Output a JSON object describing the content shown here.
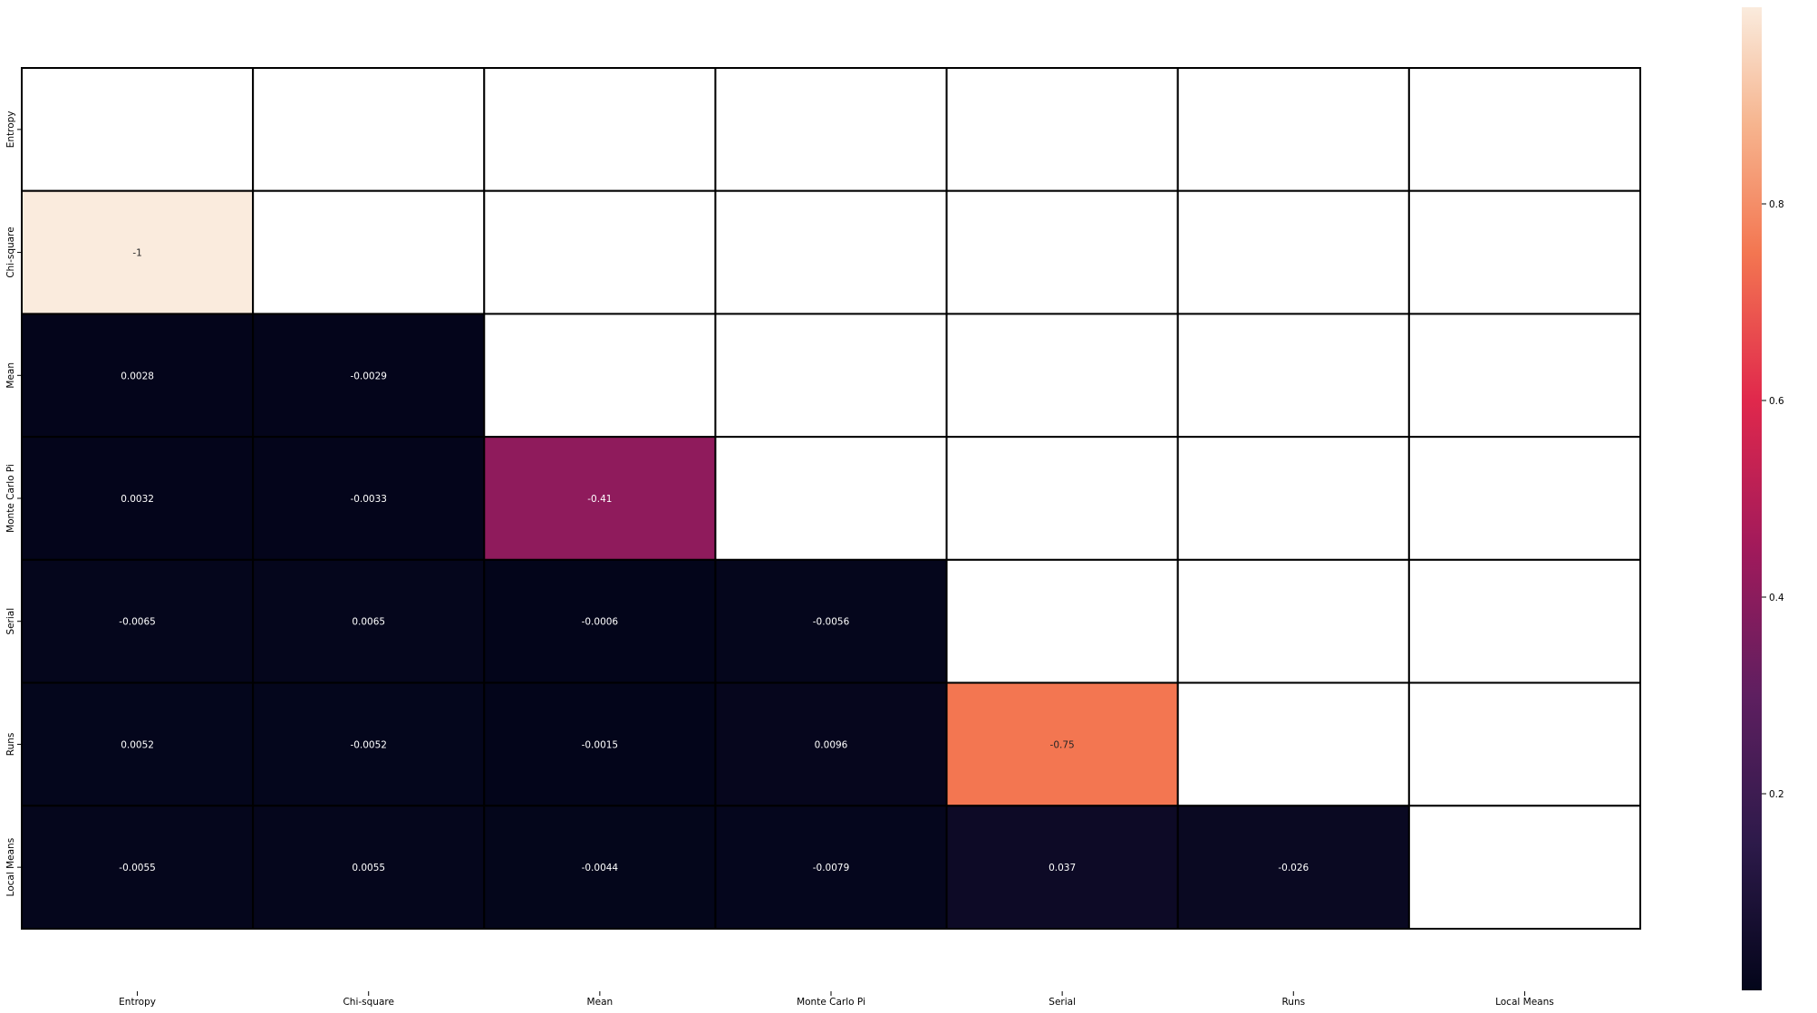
{
  "chart_data": {
    "type": "heatmap",
    "title": "",
    "xlabel": "",
    "ylabel": "",
    "labels": [
      "Entropy",
      "Chi-square",
      "Mean",
      "Monte Carlo Pi",
      "Serial",
      "Runs",
      "Local Means"
    ],
    "matrix": [
      [
        null,
        null,
        null,
        null,
        null,
        null,
        null
      ],
      [
        -1,
        null,
        null,
        null,
        null,
        null,
        null
      ],
      [
        0.0028,
        -0.0029,
        null,
        null,
        null,
        null,
        null
      ],
      [
        0.0032,
        -0.0033,
        -0.41,
        null,
        null,
        null,
        null
      ],
      [
        -0.0065,
        0.0065,
        -0.0006,
        -0.0056,
        null,
        null,
        null
      ],
      [
        0.0052,
        -0.0052,
        -0.0015,
        0.0096,
        -0.75,
        null,
        null
      ],
      [
        -0.0055,
        0.0055,
        -0.0044,
        -0.0079,
        0.037,
        -0.026,
        null
      ]
    ],
    "annotations": [
      [
        null,
        null,
        null,
        null,
        null,
        null,
        null
      ],
      [
        "-1",
        null,
        null,
        null,
        null,
        null,
        null
      ],
      [
        "0.0028",
        "-0.0029",
        null,
        null,
        null,
        null,
        null
      ],
      [
        "0.0032",
        "-0.0033",
        "-0.41",
        null,
        null,
        null,
        null
      ],
      [
        "-0.0065",
        "0.0065",
        "-0.0006",
        "-0.0056",
        null,
        null,
        null
      ],
      [
        "0.0052",
        "-0.0052",
        "-0.0015",
        "0.0096",
        "-0.75",
        null,
        null
      ],
      [
        "-0.0055",
        "0.0055",
        "-0.0044",
        "-0.0079",
        "0.037",
        "-0.026",
        null
      ]
    ],
    "mask": "upper-triangle-including-diagonal",
    "colormap": "rocket",
    "color_value": "absolute",
    "colorbar": {
      "range": [
        0,
        1
      ],
      "ticks": [
        0.2,
        0.4,
        0.6,
        0.8
      ]
    },
    "grid_color": "#000000",
    "legend": "none"
  }
}
